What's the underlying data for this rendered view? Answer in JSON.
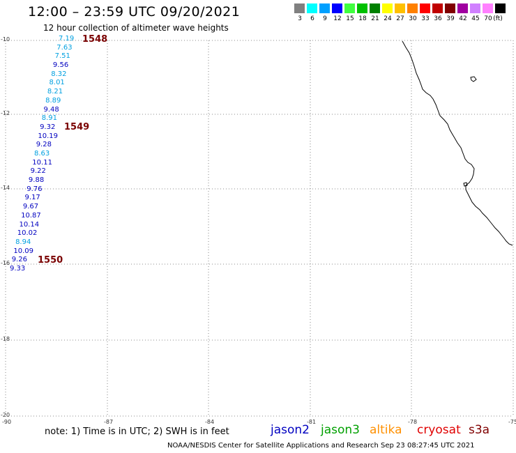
{
  "header": {
    "title": "12:00 – 23:59 UTC 09/20/2021",
    "subtitle": "12 hour collection of altimeter wave heights"
  },
  "scale": {
    "unit": "(ft)",
    "items": [
      {
        "color": "#808080",
        "label": "3"
      },
      {
        "color": "#00ffff",
        "label": "6"
      },
      {
        "color": "#00a0ff",
        "label": "9"
      },
      {
        "color": "#0000ff",
        "label": "12"
      },
      {
        "color": "#40ff40",
        "label": "15"
      },
      {
        "color": "#00c000",
        "label": "18"
      },
      {
        "color": "#008000",
        "label": "21"
      },
      {
        "color": "#ffff00",
        "label": "24"
      },
      {
        "color": "#ffc000",
        "label": "27"
      },
      {
        "color": "#ff8000",
        "label": "30"
      },
      {
        "color": "#ff0000",
        "label": "33"
      },
      {
        "color": "#c00000",
        "label": "36"
      },
      {
        "color": "#800000",
        "label": "39"
      },
      {
        "color": "#a000a0",
        "label": "42"
      },
      {
        "color": "#d080ff",
        "label": "45"
      },
      {
        "color": "#ff80ff",
        "label": "70"
      },
      {
        "color": "#000000",
        "label": ""
      }
    ]
  },
  "map": {
    "lat_labels": [
      "-10",
      "-12",
      "-14",
      "-16",
      "-18",
      "-20"
    ],
    "lon_labels": [
      "-90",
      "-87",
      "-84",
      "-81",
      "-78",
      "-75"
    ]
  },
  "passes": [
    "1548",
    "1549",
    "1550"
  ],
  "wave_heights": [
    {
      "value": "7.19",
      "color": "#00a0e0"
    },
    {
      "value": "7.63",
      "color": "#00a0e0"
    },
    {
      "value": "7.51",
      "color": "#00a0e0"
    },
    {
      "value": "9.56",
      "color": "#0000c0"
    },
    {
      "value": "8.32",
      "color": "#00a0e0"
    },
    {
      "value": "8.01",
      "color": "#00a0e0"
    },
    {
      "value": "8.21",
      "color": "#00a0e0"
    },
    {
      "value": "8.89",
      "color": "#00a0e0"
    },
    {
      "value": "9.48",
      "color": "#0000c0"
    },
    {
      "value": "8.91",
      "color": "#00a0e0"
    },
    {
      "value": "9.32",
      "color": "#0000c0"
    },
    {
      "value": "10.19",
      "color": "#0000c0"
    },
    {
      "value": "9.28",
      "color": "#0000c0"
    },
    {
      "value": "8.63",
      "color": "#00a0e0"
    },
    {
      "value": "10.11",
      "color": "#0000c0"
    },
    {
      "value": "9.22",
      "color": "#0000c0"
    },
    {
      "value": "9.88",
      "color": "#0000c0"
    },
    {
      "value": "9.76",
      "color": "#0000c0"
    },
    {
      "value": "9.17",
      "color": "#0000c0"
    },
    {
      "value": "9.67",
      "color": "#0000c0"
    },
    {
      "value": "10.87",
      "color": "#0000c0"
    },
    {
      "value": "10.14",
      "color": "#0000c0"
    },
    {
      "value": "10.02",
      "color": "#0000c0"
    },
    {
      "value": "8.94",
      "color": "#00a0e0"
    },
    {
      "value": "10.09",
      "color": "#0000c0"
    },
    {
      "value": "9.26",
      "color": "#0000c0"
    },
    {
      "value": "9.33",
      "color": "#0000c0"
    }
  ],
  "legend": {
    "note": "note: 1) Time is in UTC; 2) SWH is in feet",
    "satellites": [
      {
        "name": "jason2",
        "color": "#0000c0"
      },
      {
        "name": "jason3",
        "color": "#00a000"
      },
      {
        "name": "altika",
        "color": "#ff9000"
      },
      {
        "name": "cryosat",
        "color": "#e00000"
      },
      {
        "name": "s3a",
        "color": "#800000"
      }
    ]
  },
  "footer": "NOAA/NESDIS Center for Satellite Applications and Research     Sep 23 08:27:45 UTC 2021"
}
